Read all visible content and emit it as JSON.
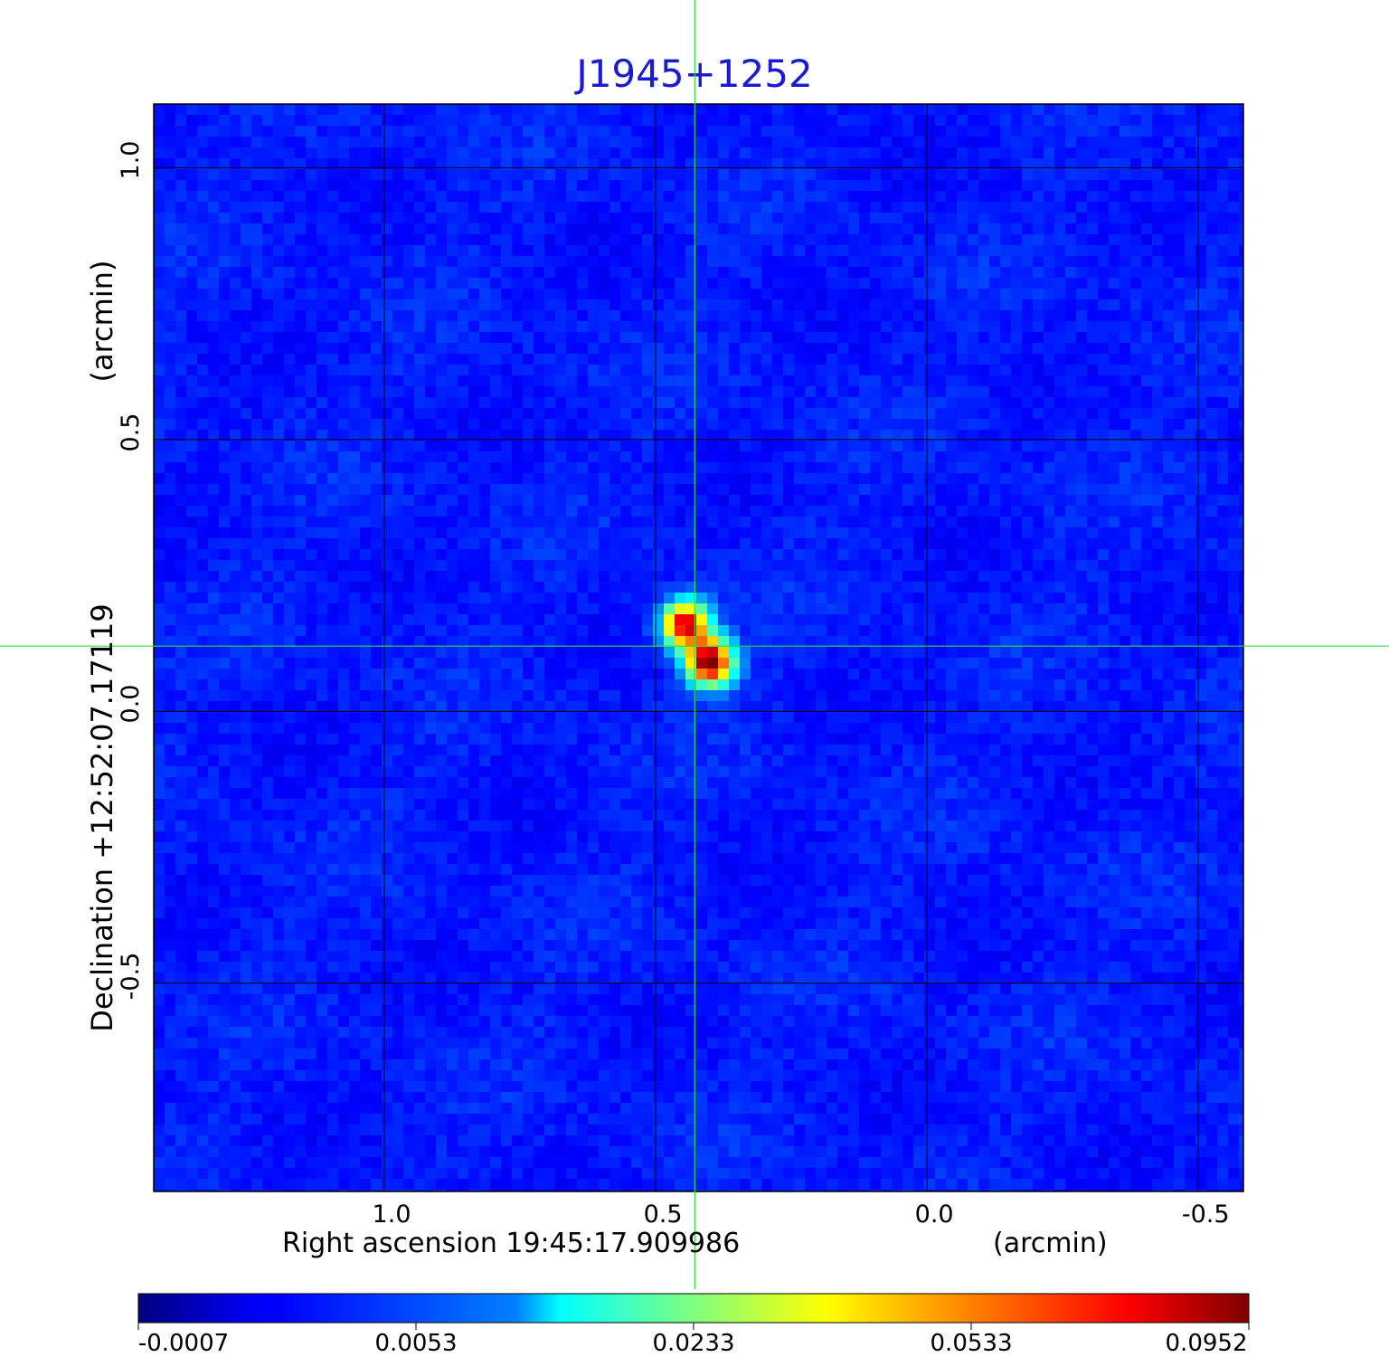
{
  "chart_data": {
    "type": "heatmap",
    "title": "J1945+1252",
    "xlabel": "Right ascension  19:45:17.909986",
    "xunit": "(arcmin)",
    "ylabel": "Declination  +12:52:07.17119",
    "yunit": "(arcmin)",
    "x_ticks": [
      "1.0",
      "0.5",
      "0.0",
      "-0.5"
    ],
    "x_tick_values": [
      1.0,
      0.5,
      0.0,
      -0.5
    ],
    "y_ticks": [
      "1.0",
      "0.5",
      "0.0",
      "-0.5"
    ],
    "y_tick_values": [
      1.0,
      0.5,
      0.0,
      -0.5
    ],
    "xlim": [
      1.425,
      -0.583
    ],
    "ylim": [
      -0.883,
      1.117
    ],
    "grid": true,
    "crosshair": {
      "x": 0.428,
      "y": 0.12,
      "color": "#33dd33"
    },
    "colormap": "jet",
    "colorbar": {
      "ticks": [
        "-0.0007",
        "0.0053",
        "0.0233",
        "0.0533",
        "0.0952"
      ],
      "range": [
        -0.0007,
        0.0952
      ]
    },
    "sources": [
      {
        "x": 0.445,
        "y": 0.16,
        "peak": 0.085
      },
      {
        "x": 0.4,
        "y": 0.09,
        "peak": 0.0952
      }
    ],
    "background_level": 0.0035
  }
}
